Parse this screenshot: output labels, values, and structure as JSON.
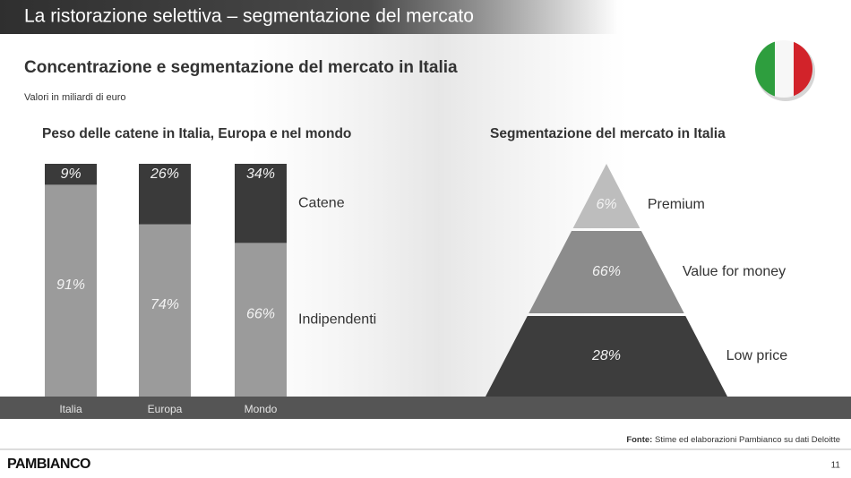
{
  "header": {
    "title": "La ristorazione selettiva – segmentazione del mercato"
  },
  "subtitle": "Concentrazione e segmentazione del mercato in Italia",
  "unit_note": "Valori in miliardi di euro",
  "chart_data": [
    {
      "type": "stacked_bar",
      "title": "Peso delle catene in Italia, Europa e nel mondo",
      "categories": [
        "Italia",
        "Europa",
        "Mondo"
      ],
      "ylim": [
        0,
        100
      ],
      "series": [
        {
          "name": "Indipendenti",
          "color": "#9b9b9b",
          "values": [
            91,
            74,
            66
          ],
          "value_labels": [
            "91%",
            "74%",
            "66%"
          ]
        },
        {
          "name": "Catene",
          "color": "#3a3a3a",
          "values": [
            9,
            26,
            34
          ],
          "value_labels": [
            "9%",
            "26%",
            "34%"
          ]
        }
      ]
    },
    {
      "type": "pyramid",
      "title": "Segmentazione del mercato in Italia",
      "categories": [
        "Premium",
        "Value for money",
        "Low price"
      ],
      "values": [
        6,
        66,
        28
      ],
      "value_labels": [
        "6%",
        "66%",
        "28%"
      ],
      "colors": [
        "#bdbdbd",
        "#8c8c8c",
        "#3d3d3d"
      ]
    }
  ],
  "footer": {
    "source_label": "Fonte:",
    "source_text": "Stime ed elaborazioni Pambianco su dati Deloitte",
    "logo": "PAMBIANCO",
    "page_number": "11"
  }
}
